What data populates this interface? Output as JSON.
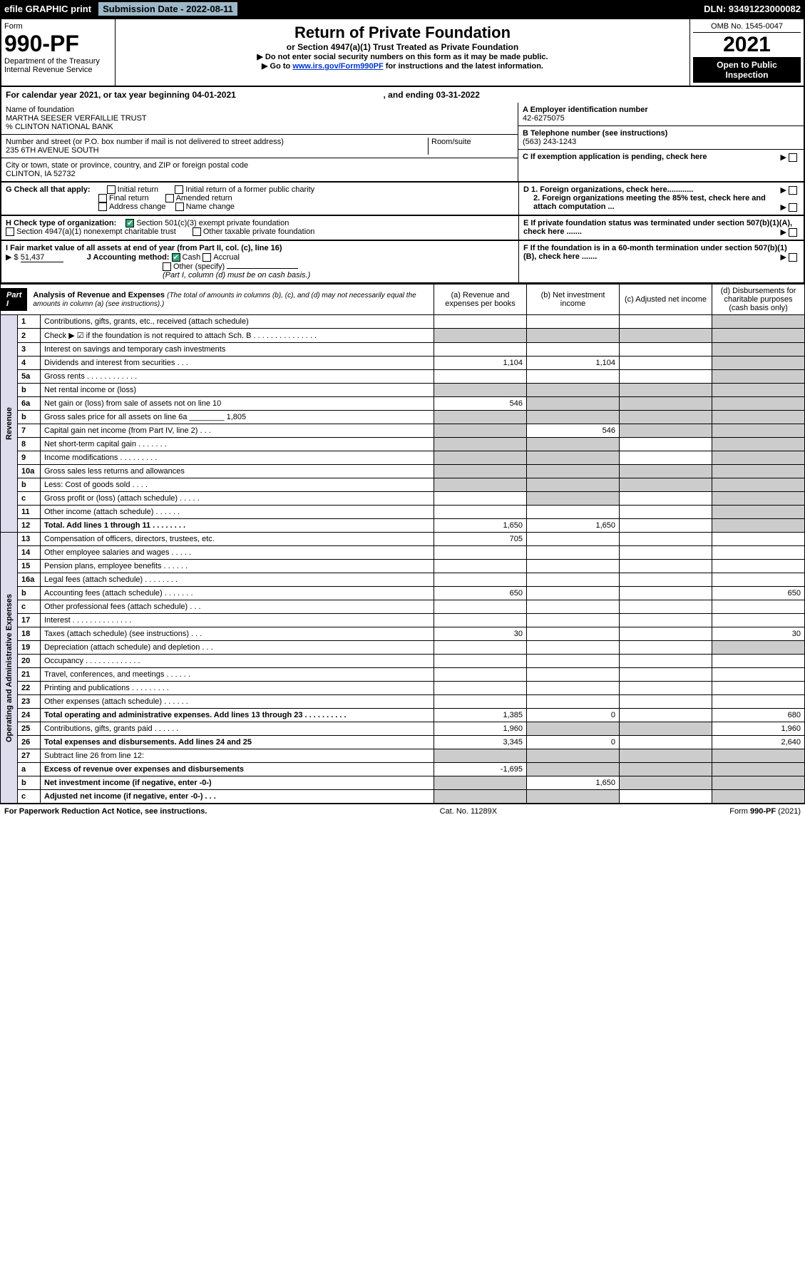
{
  "topbar": {
    "efile": "efile GRAPHIC print",
    "subdate_label": "Submission Date - 2022-08-11",
    "dln": "DLN: 93491223000082"
  },
  "header": {
    "form_word": "Form",
    "form_no": "990-PF",
    "dept": "Department of the Treasury\nInternal Revenue Service",
    "title": "Return of Private Foundation",
    "subtitle": "or Section 4947(a)(1) Trust Treated as Private Foundation",
    "instr1": "▶ Do not enter social security numbers on this form as it may be made public.",
    "instr2_pre": "▶ Go to ",
    "instr2_link": "www.irs.gov/Form990PF",
    "instr2_post": " for instructions and the latest information.",
    "omb": "OMB No. 1545-0047",
    "year": "2021",
    "open": "Open to Public\nInspection"
  },
  "cal": {
    "text": "For calendar year 2021, or tax year beginning 04-01-2021",
    "end": ", and ending 03-31-2022"
  },
  "ident": {
    "name_label": "Name of foundation",
    "name": "MARTHA SEESER VERFAILLIE TRUST\n% CLINTON NATIONAL BANK",
    "addr_label": "Number and street (or P.O. box number if mail is not delivered to street address)",
    "addr": "235 6TH AVENUE SOUTH",
    "room_label": "Room/suite",
    "city_label": "City or town, state or province, country, and ZIP or foreign postal code",
    "city": "CLINTON, IA  52732",
    "a_label": "A Employer identification number",
    "a_val": "42-6275075",
    "b_label": "B Telephone number (see instructions)",
    "b_val": "(563) 243-1243",
    "c_label": "C If exemption application is pending, check here"
  },
  "checks": {
    "g_label": "G Check all that apply:",
    "g_opts": [
      "Initial return",
      "Final return",
      "Address change",
      "Initial return of a former public charity",
      "Amended return",
      "Name change"
    ],
    "h_label": "H Check type of organization:",
    "h1": "Section 501(c)(3) exempt private foundation",
    "h2": "Section 4947(a)(1) nonexempt charitable trust",
    "h3": "Other taxable private foundation",
    "i_label": "I Fair market value of all assets at end of year (from Part II, col. (c), line 16)",
    "i_val": "51,437",
    "i_arrow": "▶ $",
    "j_label": "J Accounting method:",
    "j_cash": "Cash",
    "j_accrual": "Accrual",
    "j_other": "Other (specify)",
    "j_note": "(Part I, column (d) must be on cash basis.)",
    "d1": "D 1. Foreign organizations, check here............",
    "d2": "2. Foreign organizations meeting the 85% test, check here and attach computation ...",
    "e": "E  If private foundation status was terminated under section 507(b)(1)(A), check here .......",
    "f": "F  If the foundation is in a 60-month termination under section 507(b)(1)(B), check here ......."
  },
  "part1": {
    "tag": "Part I",
    "title": "Analysis of Revenue and Expenses",
    "title_sub": "(The total of amounts in columns (b), (c), and (d) may not necessarily equal the amounts in column (a) (see instructions).)",
    "col_a": "(a)   Revenue and expenses per books",
    "col_b": "(b)   Net investment income",
    "col_c": "(c)   Adjusted net income",
    "col_d": "(d)   Disbursements for charitable purposes (cash basis only)",
    "revenue_label": "Revenue",
    "expense_label": "Operating and Administrative Expenses"
  },
  "rows": [
    {
      "n": "1",
      "t": "Contributions, gifts, grants, etc., received (attach schedule)",
      "a": "",
      "b": "",
      "c": "",
      "d": "shade"
    },
    {
      "n": "2",
      "t": "Check ▶ ☑ if the foundation is not required to attach Sch. B      .   .   .   .   .   .   .   .   .   .   .   .   .   .   .",
      "a": "shade",
      "b": "shade",
      "c": "shade",
      "d": "shade"
    },
    {
      "n": "3",
      "t": "Interest on savings and temporary cash investments",
      "a": "",
      "b": "",
      "c": "",
      "d": "shade"
    },
    {
      "n": "4",
      "t": "Dividends and interest from securities    .   .   .",
      "a": "1,104",
      "b": "1,104",
      "c": "",
      "d": "shade"
    },
    {
      "n": "5a",
      "t": "Gross rents      .   .   .   .   .   .   .   .   .   .   .   .",
      "a": "",
      "b": "",
      "c": "",
      "d": "shade"
    },
    {
      "n": "b",
      "t": "Net rental income or (loss)",
      "a": "shade",
      "b": "shade",
      "c": "shade",
      "d": "shade"
    },
    {
      "n": "6a",
      "t": "Net gain or (loss) from sale of assets not on line 10",
      "a": "546",
      "b": "shade",
      "c": "shade",
      "d": "shade"
    },
    {
      "n": "b",
      "t": "Gross sales price for all assets on line 6a ________ 1,805",
      "a": "shade",
      "b": "shade",
      "c": "shade",
      "d": "shade"
    },
    {
      "n": "7",
      "t": "Capital gain net income (from Part IV, line 2)   .   .   .",
      "a": "shade",
      "b": "546",
      "c": "shade",
      "d": "shade"
    },
    {
      "n": "8",
      "t": "Net short-term capital gain   .   .   .   .   .   .   .",
      "a": "shade",
      "b": "shade",
      "c": "",
      "d": "shade"
    },
    {
      "n": "9",
      "t": "Income modifications   .   .   .   .   .   .   .   .   .",
      "a": "shade",
      "b": "shade",
      "c": "",
      "d": "shade"
    },
    {
      "n": "10a",
      "t": "Gross sales less returns and allowances",
      "a": "shade",
      "b": "shade",
      "c": "shade",
      "d": "shade"
    },
    {
      "n": "b",
      "t": "Less: Cost of goods sold     .   .   .   .",
      "a": "shade",
      "b": "shade",
      "c": "shade",
      "d": "shade"
    },
    {
      "n": "c",
      "t": "Gross profit or (loss) (attach schedule)     .   .   .   .   .",
      "a": "",
      "b": "shade",
      "c": "",
      "d": "shade"
    },
    {
      "n": "11",
      "t": "Other income (attach schedule)    .   .   .   .   .   .",
      "a": "",
      "b": "",
      "c": "",
      "d": "shade"
    },
    {
      "n": "12",
      "t": "Total. Add lines 1 through 11   .   .   .   .   .   .   .   .",
      "a": "1,650",
      "b": "1,650",
      "c": "",
      "d": "shade",
      "bold": true
    },
    {
      "n": "13",
      "t": "Compensation of officers, directors, trustees, etc.",
      "a": "705",
      "b": "",
      "c": "",
      "d": ""
    },
    {
      "n": "14",
      "t": "Other employee salaries and wages    .   .   .   .   .",
      "a": "",
      "b": "",
      "c": "",
      "d": ""
    },
    {
      "n": "15",
      "t": "Pension plans, employee benefits   .   .   .   .   .   .",
      "a": "",
      "b": "",
      "c": "",
      "d": ""
    },
    {
      "n": "16a",
      "t": "Legal fees (attach schedule)  .   .   .   .   .   .   .   .",
      "a": "",
      "b": "",
      "c": "",
      "d": ""
    },
    {
      "n": "b",
      "t": "Accounting fees (attach schedule)  .   .   .   .   .   .   .",
      "a": "650",
      "b": "",
      "c": "",
      "d": "650"
    },
    {
      "n": "c",
      "t": "Other professional fees (attach schedule)    .   .   .",
      "a": "",
      "b": "",
      "c": "",
      "d": ""
    },
    {
      "n": "17",
      "t": "Interest  .   .   .   .   .   .   .   .   .   .   .   .   .   .",
      "a": "",
      "b": "",
      "c": "",
      "d": ""
    },
    {
      "n": "18",
      "t": "Taxes (attach schedule) (see instructions)     .   .   .",
      "a": "30",
      "b": "",
      "c": "",
      "d": "30"
    },
    {
      "n": "19",
      "t": "Depreciation (attach schedule) and depletion    .   .   .",
      "a": "",
      "b": "",
      "c": "",
      "d": "shade"
    },
    {
      "n": "20",
      "t": "Occupancy  .   .   .   .   .   .   .   .   .   .   .   .   .",
      "a": "",
      "b": "",
      "c": "",
      "d": ""
    },
    {
      "n": "21",
      "t": "Travel, conferences, and meetings  .   .   .   .   .   .",
      "a": "",
      "b": "",
      "c": "",
      "d": ""
    },
    {
      "n": "22",
      "t": "Printing and publications  .   .   .   .   .   .   .   .   .",
      "a": "",
      "b": "",
      "c": "",
      "d": ""
    },
    {
      "n": "23",
      "t": "Other expenses (attach schedule)  .   .   .   .   .   .",
      "a": "",
      "b": "",
      "c": "",
      "d": ""
    },
    {
      "n": "24",
      "t": "Total operating and administrative expenses. Add lines 13 through 23   .   .   .   .   .   .   .   .   .   .",
      "a": "1,385",
      "b": "0",
      "c": "",
      "d": "680",
      "bold": true
    },
    {
      "n": "25",
      "t": "Contributions, gifts, grants paid     .   .   .   .   .   .",
      "a": "1,960",
      "b": "shade",
      "c": "shade",
      "d": "1,960"
    },
    {
      "n": "26",
      "t": "Total expenses and disbursements. Add lines 24 and 25",
      "a": "3,345",
      "b": "0",
      "c": "",
      "d": "2,640",
      "bold": true
    },
    {
      "n": "27",
      "t": "Subtract line 26 from line 12:",
      "a": "shade",
      "b": "shade",
      "c": "shade",
      "d": "shade"
    },
    {
      "n": "a",
      "t": "Excess of revenue over expenses and disbursements",
      "a": "-1,695",
      "b": "shade",
      "c": "shade",
      "d": "shade",
      "bold": true
    },
    {
      "n": "b",
      "t": "Net investment income (if negative, enter -0-)",
      "a": "shade",
      "b": "1,650",
      "c": "shade",
      "d": "shade",
      "bold": true
    },
    {
      "n": "c",
      "t": "Adjusted net income (if negative, enter -0-)   .   .   .",
      "a": "shade",
      "b": "shade",
      "c": "",
      "d": "shade",
      "bold": true
    }
  ],
  "footer": {
    "left": "For Paperwork Reduction Act Notice, see instructions.",
    "mid": "Cat. No. 11289X",
    "right": "Form 990-PF (2021)"
  },
  "colors": {
    "black": "#000000",
    "shade": "#cccccc",
    "link": "#0033cc",
    "checked": "#33aa77",
    "part_bg": "#000000",
    "vlabel_bg": "#dde4ee"
  }
}
